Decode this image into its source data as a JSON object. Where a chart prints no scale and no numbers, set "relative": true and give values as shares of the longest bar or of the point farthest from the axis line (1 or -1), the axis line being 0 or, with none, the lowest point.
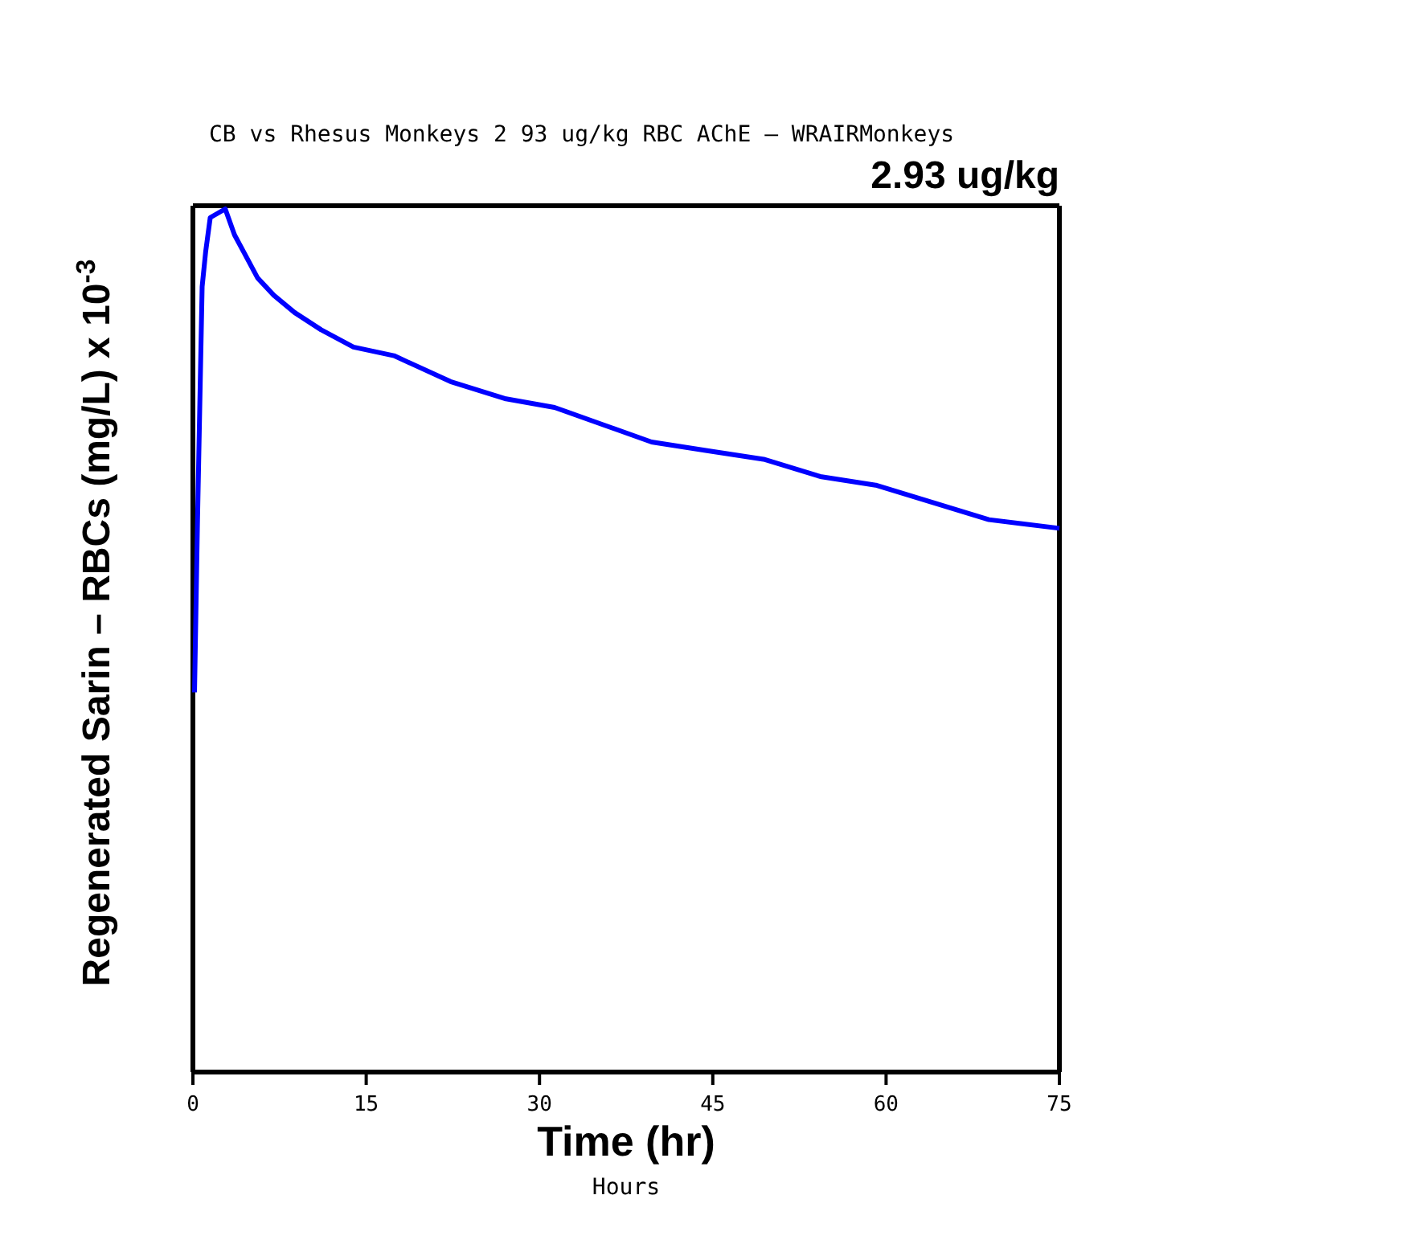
{
  "chart_data": {
    "type": "line",
    "title": "2.93 ug/kg",
    "subtitle": "CB vs Rhesus Monkeys 2 93 ug/kg RBC AChE – WRAIRMonkeys",
    "xlabel": "Time (hr)",
    "ylabel": "Regenerated Sarin – RBCs (mg/L) x 10$^{-3}$",
    "annotations": [
      "Hours"
    ],
    "relative": true,
    "xlim": [
      0,
      75
    ],
    "xticks": [
      0,
      15,
      30,
      45,
      60,
      75
    ],
    "series": [
      {
        "color": "#0000ff",
        "x": [
          0.14,
          0.4,
          0.8,
          1.1,
          1.5,
          2.8,
          3.6,
          4.4,
          5.6,
          7.0,
          8.8,
          11.1,
          13.9,
          17.4,
          22.3,
          27.1,
          31.3,
          35.5,
          39.7,
          44.5,
          49.4,
          54.3,
          59.1,
          64.0,
          68.9,
          75
        ],
        "values": [
          0.44,
          0.64,
          0.91,
          0.95,
          0.99,
          1.0,
          0.97,
          0.95,
          0.92,
          0.9,
          0.88,
          0.86,
          0.84,
          0.83,
          0.8,
          0.78,
          0.77,
          0.75,
          0.73,
          0.72,
          0.71,
          0.69,
          0.68,
          0.66,
          0.64,
          0.63
        ]
      }
    ]
  }
}
